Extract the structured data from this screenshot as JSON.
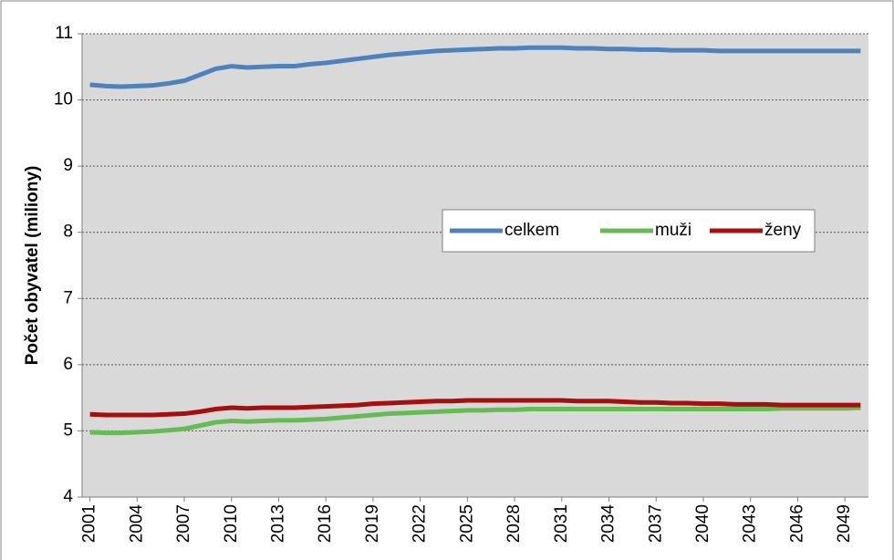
{
  "chart_data": {
    "type": "line",
    "y_label": "Počet obyvatel (miliony)",
    "x": [
      2001,
      2002,
      2003,
      2004,
      2005,
      2006,
      2007,
      2008,
      2009,
      2010,
      2011,
      2012,
      2013,
      2014,
      2015,
      2016,
      2017,
      2018,
      2019,
      2020,
      2021,
      2022,
      2023,
      2024,
      2025,
      2026,
      2027,
      2028,
      2029,
      2030,
      2031,
      2032,
      2033,
      2034,
      2035,
      2036,
      2037,
      2038,
      2039,
      2040,
      2041,
      2042,
      2043,
      2044,
      2045,
      2046,
      2047,
      2048,
      2049,
      2050
    ],
    "series": [
      {
        "name": "celkem",
        "color": "#4f81bd",
        "values": [
          10.23,
          10.21,
          10.2,
          10.21,
          10.22,
          10.25,
          10.29,
          10.38,
          10.47,
          10.51,
          10.49,
          10.5,
          10.51,
          10.51,
          10.54,
          10.56,
          10.59,
          10.62,
          10.65,
          10.68,
          10.7,
          10.72,
          10.74,
          10.75,
          10.76,
          10.77,
          10.78,
          10.78,
          10.79,
          10.79,
          10.79,
          10.78,
          10.78,
          10.77,
          10.77,
          10.76,
          10.76,
          10.75,
          10.75,
          10.75,
          10.74,
          10.74,
          10.74,
          10.74,
          10.74,
          10.74,
          10.74,
          10.74,
          10.74,
          10.74
        ]
      },
      {
        "name": "muži",
        "color": "#66bb55",
        "values": [
          4.98,
          4.97,
          4.97,
          4.98,
          4.99,
          5.01,
          5.03,
          5.08,
          5.13,
          5.15,
          5.14,
          5.15,
          5.16,
          5.16,
          5.17,
          5.18,
          5.2,
          5.22,
          5.24,
          5.26,
          5.27,
          5.28,
          5.29,
          5.3,
          5.31,
          5.31,
          5.32,
          5.32,
          5.33,
          5.33,
          5.33,
          5.33,
          5.33,
          5.33,
          5.33,
          5.33,
          5.33,
          5.33,
          5.33,
          5.33,
          5.33,
          5.33,
          5.33,
          5.33,
          5.34,
          5.34,
          5.34,
          5.34,
          5.34,
          5.35
        ]
      },
      {
        "name": "ženy",
        "color": "#a50f0f",
        "values": [
          5.25,
          5.24,
          5.24,
          5.24,
          5.24,
          5.25,
          5.26,
          5.29,
          5.33,
          5.35,
          5.34,
          5.35,
          5.35,
          5.35,
          5.36,
          5.37,
          5.38,
          5.39,
          5.41,
          5.42,
          5.43,
          5.44,
          5.45,
          5.45,
          5.46,
          5.46,
          5.46,
          5.46,
          5.46,
          5.46,
          5.46,
          5.45,
          5.45,
          5.45,
          5.44,
          5.43,
          5.43,
          5.42,
          5.42,
          5.41,
          5.41,
          5.4,
          5.4,
          5.4,
          5.39,
          5.39,
          5.39,
          5.39,
          5.39,
          5.39
        ]
      }
    ],
    "xlim": [
      2000.5,
      2050.5
    ],
    "xticks": [
      2001,
      2004,
      2007,
      2010,
      2013,
      2016,
      2019,
      2022,
      2025,
      2028,
      2031,
      2034,
      2037,
      2040,
      2043,
      2046,
      2049
    ],
    "ylim": [
      4,
      11
    ],
    "yticks": [
      4,
      5,
      6,
      7,
      8,
      9,
      10,
      11
    ],
    "grid": true,
    "legend": "right"
  }
}
